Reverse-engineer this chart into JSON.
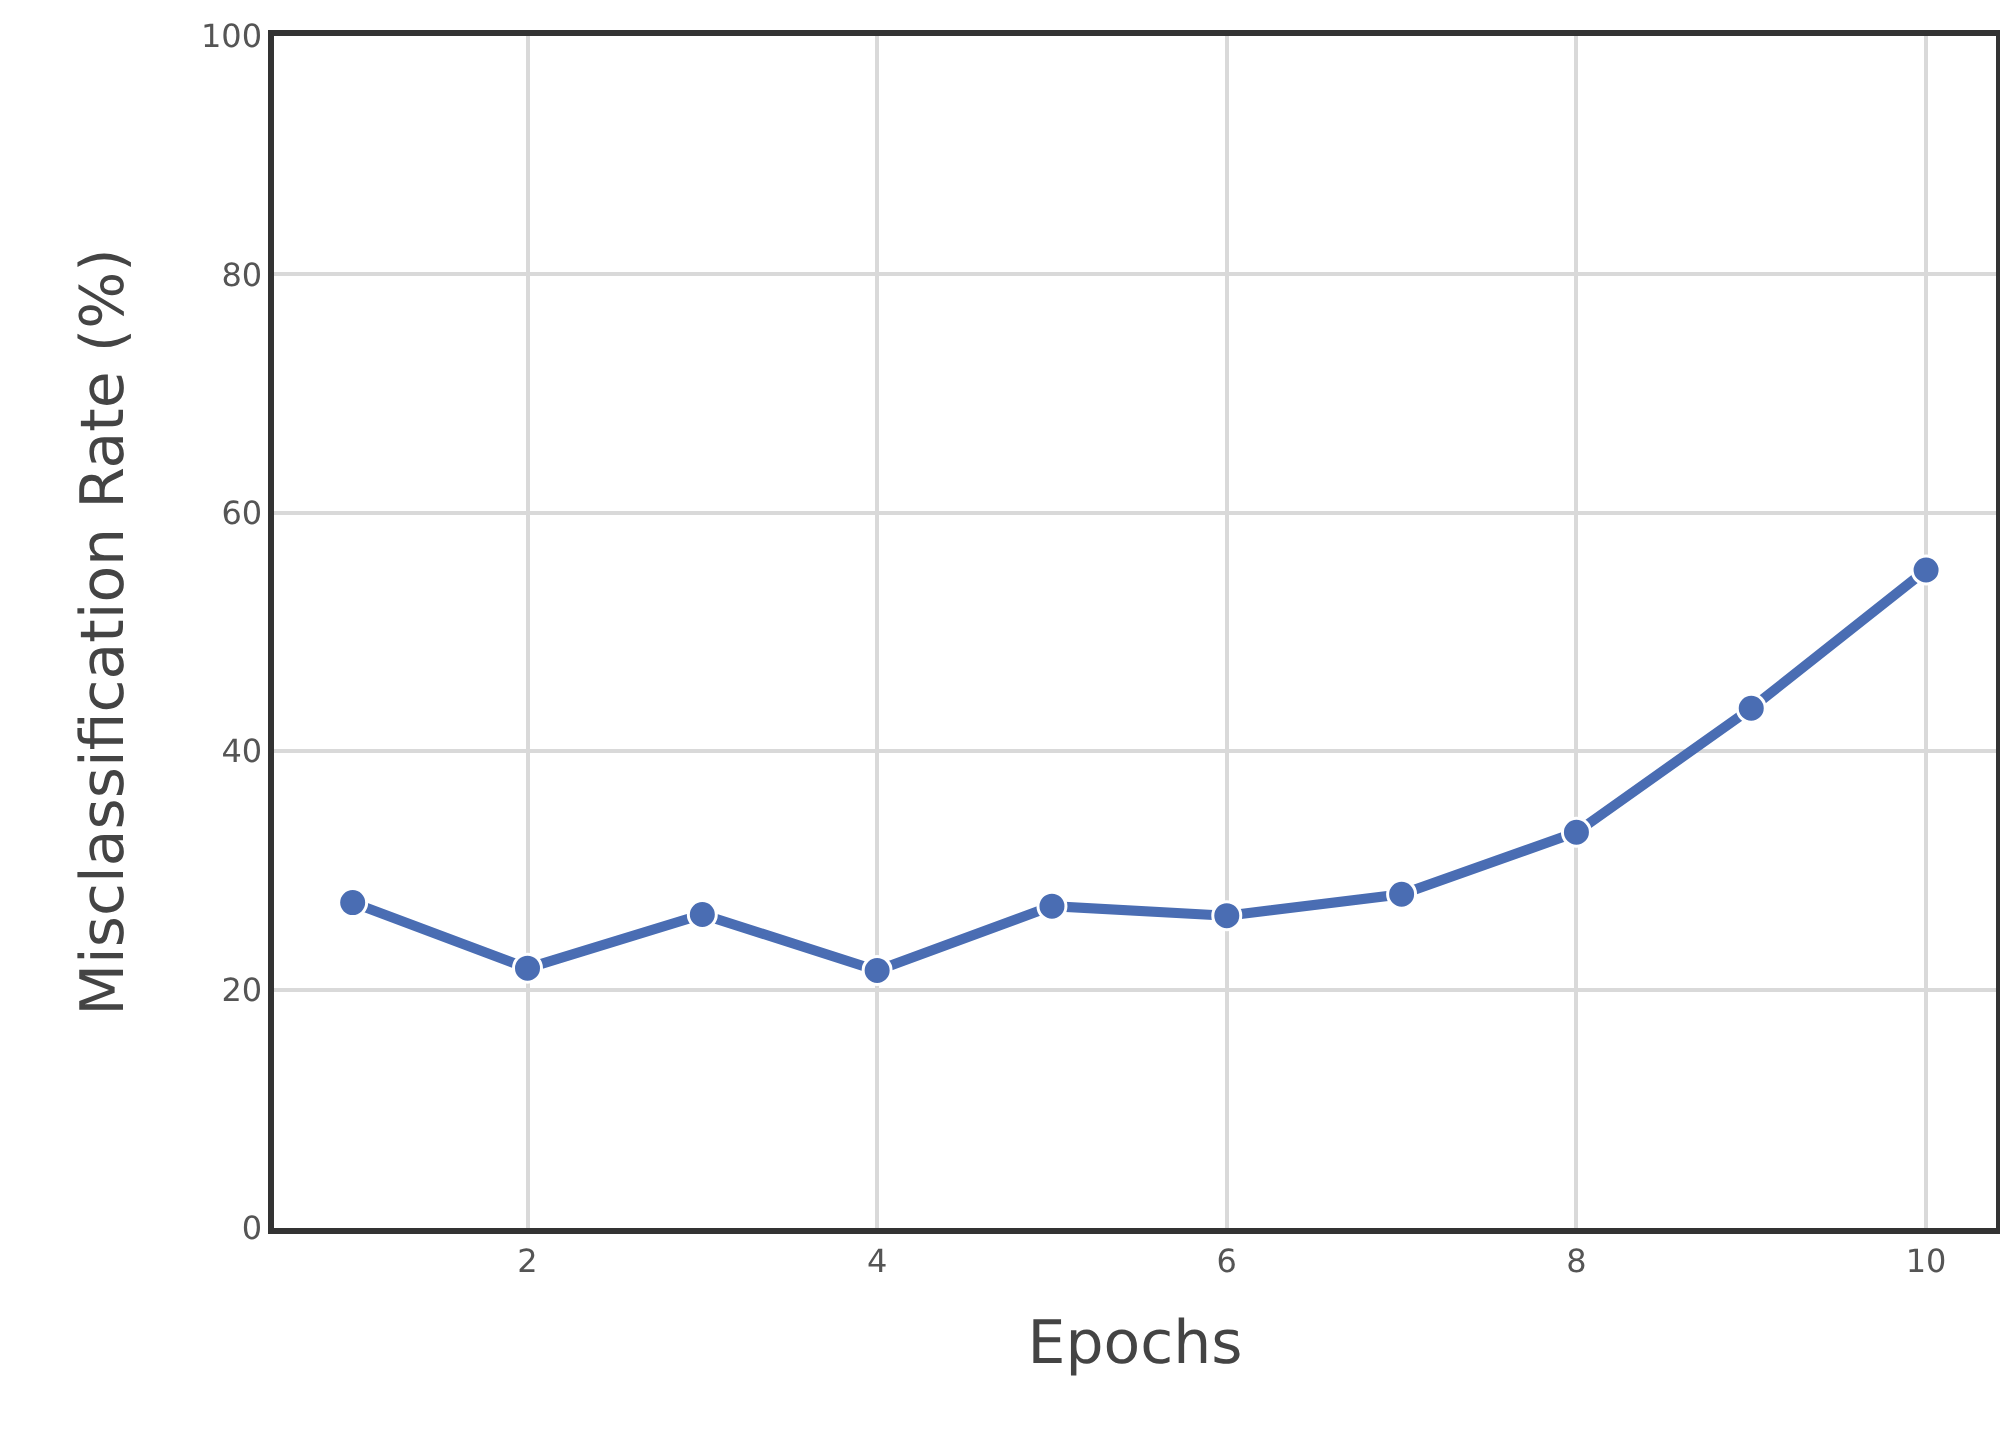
{
  "chart_data": {
    "type": "line",
    "xlabel": "Epochs",
    "ylabel": "Misclassification Rate (%)",
    "x": [
      1,
      2,
      3,
      4,
      5,
      6,
      7,
      8,
      9,
      10
    ],
    "series": [
      {
        "color": "#4a6db3",
        "values": [
          27.3,
          21.8,
          26.3,
          21.6,
          27.0,
          26.2,
          28.0,
          33.2,
          43.6,
          55.2
        ]
      }
    ],
    "xlim": [
      0.55,
      10.4
    ],
    "xticks": [
      2,
      4,
      6,
      8,
      10
    ],
    "ylim": [
      0,
      100
    ],
    "yticks": [
      0,
      20,
      40,
      60,
      80,
      100
    ],
    "grid": true,
    "marker": "circle",
    "line_style": "solid"
  }
}
